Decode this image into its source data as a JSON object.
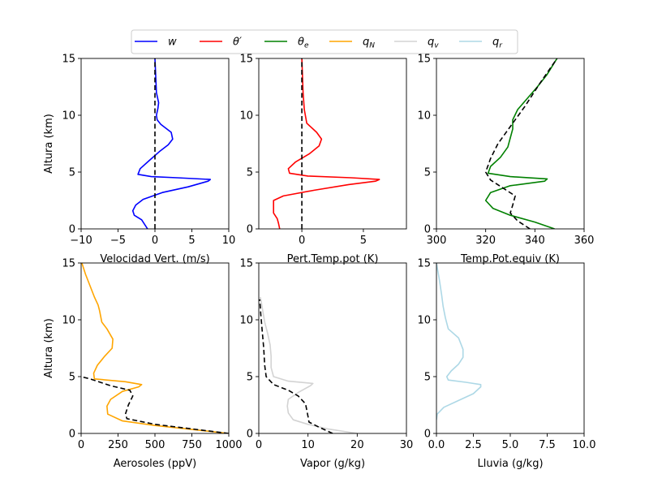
{
  "legend": {
    "placement": "top-center",
    "items": [
      {
        "label": "w",
        "color": "#0000ff"
      },
      {
        "label": "θ′",
        "color": "#ff0000"
      },
      {
        "label": "θe",
        "color": "#008000"
      },
      {
        "label": "qN",
        "color": "#ffa500"
      },
      {
        "label": "qv",
        "color": "#d3d3d3"
      },
      {
        "label": "qr",
        "color": "#add8e6"
      }
    ]
  },
  "chart_data": [
    {
      "type": "line",
      "xlabel": "Velocidad Vert. (m/s)",
      "ylabel": "Altura (km)",
      "xlim": [
        -10,
        10
      ],
      "ylim": [
        0,
        15
      ],
      "xticks": [
        -10,
        -5,
        0,
        5,
        10
      ],
      "xtick_labels": [
        "−10",
        "−5",
        "0",
        "5",
        "10"
      ],
      "yticks": [
        0,
        5,
        10,
        15
      ],
      "ytick_labels": [
        "0",
        "5",
        "10",
        "15"
      ],
      "series": [
        {
          "name": "w",
          "color": "#0000ff",
          "style": "solid",
          "x": [
            -1.0,
            -1.4,
            -1.8,
            -2.8,
            -3.0,
            -2.6,
            -1.6,
            1.0,
            4.5,
            7.2,
            7.5,
            3.0,
            -0.5,
            -2.3,
            -2.0,
            -0.8,
            0.6,
            1.8,
            2.4,
            2.2,
            0.8,
            0.3,
            0.2,
            0.4,
            0.5,
            0.2,
            0.0
          ],
          "y": [
            0.0,
            0.4,
            0.8,
            1.2,
            1.6,
            2.1,
            2.6,
            3.2,
            3.7,
            4.2,
            4.35,
            4.5,
            4.6,
            4.8,
            5.3,
            6.0,
            6.8,
            7.4,
            7.9,
            8.5,
            9.2,
            9.6,
            10.0,
            10.6,
            11.1,
            12.0,
            15.0
          ]
        },
        {
          "name": "",
          "color": "#000000",
          "style": "dashed",
          "x": [
            0,
            0
          ],
          "y": [
            0,
            15
          ]
        }
      ]
    },
    {
      "type": "line",
      "xlabel": "Pert.Temp.pot (K)",
      "ylabel": "",
      "xlim": [
        -3.5,
        8.5
      ],
      "ylim": [
        0,
        15
      ],
      "xticks": [
        0,
        5
      ],
      "xtick_labels": [
        "0",
        "5"
      ],
      "yticks": [
        0,
        5,
        10,
        15
      ],
      "ytick_labels": [
        "0",
        "5",
        "10",
        "15"
      ],
      "series": [
        {
          "name": "θ′",
          "color": "#ff0000",
          "style": "solid",
          "x": [
            -1.8,
            -1.9,
            -2.0,
            -2.3,
            -2.3,
            -1.5,
            1.0,
            3.8,
            6.0,
            6.3,
            4.0,
            0.5,
            -1.0,
            -1.1,
            -0.5,
            0.6,
            1.4,
            1.6,
            1.2,
            0.4,
            0.2,
            0.1,
            0.0
          ],
          "y": [
            0.0,
            0.5,
            0.9,
            1.4,
            2.5,
            2.9,
            3.4,
            3.9,
            4.2,
            4.35,
            4.5,
            4.65,
            4.9,
            5.3,
            5.9,
            6.6,
            7.3,
            7.9,
            8.5,
            9.3,
            10.5,
            12.0,
            15.0
          ]
        },
        {
          "name": "",
          "color": "#000000",
          "style": "dashed",
          "x": [
            0,
            0
          ],
          "y": [
            0,
            15
          ]
        }
      ]
    },
    {
      "type": "line",
      "xlabel": "Temp.Pot.equiv (K)",
      "ylabel": "",
      "xlim": [
        300,
        360
      ],
      "ylim": [
        0,
        15
      ],
      "xticks": [
        300,
        320,
        340,
        360
      ],
      "xtick_labels": [
        "300",
        "320",
        "340",
        "360"
      ],
      "yticks": [
        0,
        5,
        10,
        15
      ],
      "ytick_labels": [
        "0",
        "5",
        "10",
        "15"
      ],
      "series": [
        {
          "name": "θe",
          "color": "#008000",
          "style": "solid",
          "x": [
            348,
            340,
            330,
            323,
            320,
            322,
            330,
            344,
            345,
            330,
            321,
            322,
            326,
            329,
            330,
            331,
            331,
            333,
            337,
            341,
            345,
            349
          ],
          "y": [
            0.0,
            0.6,
            1.2,
            1.8,
            2.5,
            3.2,
            3.8,
            4.2,
            4.4,
            4.6,
            4.9,
            5.5,
            6.3,
            7.2,
            8.0,
            8.8,
            9.6,
            10.5,
            11.5,
            12.5,
            13.6,
            15.0
          ]
        },
        {
          "name": "",
          "color": "#000000",
          "style": "dashed",
          "x": [
            338,
            333,
            330,
            331,
            332,
            327,
            322,
            320,
            322,
            325,
            330,
            336,
            342,
            349
          ],
          "y": [
            0.0,
            0.7,
            1.4,
            2.1,
            2.9,
            3.6,
            4.3,
            5.0,
            6.2,
            7.5,
            9.0,
            10.8,
            12.8,
            15.0
          ]
        }
      ]
    },
    {
      "type": "line",
      "xlabel": "Aerosoles (ppV)",
      "ylabel": "Altura (km)",
      "xlim": [
        0,
        1000
      ],
      "ylim": [
        0,
        15
      ],
      "xticks": [
        0,
        250,
        500,
        750,
        1000
      ],
      "xtick_labels": [
        "0",
        "250",
        "500",
        "750",
        "1000"
      ],
      "yticks": [
        0,
        5,
        10,
        15
      ],
      "ytick_labels": [
        "0",
        "5",
        "10",
        "15"
      ],
      "series": [
        {
          "name": "qN",
          "color": "#ffa500",
          "style": "solid",
          "x": [
            1000,
            500,
            280,
            180,
            175,
            200,
            280,
            390,
            410,
            300,
            90,
            85,
            110,
            160,
            210,
            215,
            175,
            140,
            125,
            115,
            90,
            60,
            30,
            5
          ],
          "y": [
            0.0,
            0.7,
            1.1,
            1.7,
            2.4,
            3.0,
            3.7,
            4.1,
            4.3,
            4.55,
            4.8,
            5.3,
            6.0,
            6.8,
            7.5,
            8.3,
            9.2,
            9.8,
            10.8,
            11.3,
            12.0,
            13.0,
            14.0,
            15.0
          ]
        },
        {
          "name": "",
          "color": "#000000",
          "style": "dashed",
          "x": [
            1000,
            500,
            310,
            300,
            320,
            350,
            330,
            200,
            60,
            0
          ],
          "y": [
            0.0,
            0.8,
            1.3,
            1.7,
            2.5,
            3.3,
            3.8,
            4.2,
            4.8,
            5.0
          ]
        }
      ]
    },
    {
      "type": "line",
      "xlabel": "Vapor (g/kg)",
      "ylabel": "",
      "xlim": [
        0,
        30
      ],
      "ylim": [
        0,
        15
      ],
      "xticks": [
        0,
        10,
        20,
        30
      ],
      "xtick_labels": [
        "0",
        "10",
        "20",
        "30"
      ],
      "yticks": [
        0,
        5,
        10,
        15
      ],
      "ytick_labels": [
        "0",
        "5",
        "10",
        "15"
      ],
      "series": [
        {
          "name": "qv",
          "color": "#d3d3d3",
          "style": "solid",
          "x": [
            20,
            14,
            10,
            7,
            6,
            5.8,
            6,
            8,
            10.5,
            11,
            6,
            3,
            2.5,
            2.5,
            2.3,
            1.8,
            1.2,
            0.8,
            0.5,
            0.3
          ],
          "y": [
            0.0,
            0.4,
            0.8,
            1.2,
            1.8,
            2.4,
            3.0,
            3.6,
            4.2,
            4.4,
            4.6,
            5.0,
            5.8,
            6.8,
            7.8,
            8.8,
            9.8,
            10.8,
            11.6,
            12.0
          ]
        },
        {
          "name": "",
          "color": "#000000",
          "style": "dashed",
          "x": [
            15,
            12,
            10.2,
            10,
            9.5,
            8,
            6,
            3,
            1.5,
            1.2,
            1.0,
            0.7,
            0.4,
            0.2
          ],
          "y": [
            0.0,
            0.6,
            1.0,
            1.5,
            2.6,
            3.3,
            3.8,
            4.3,
            5.0,
            6.0,
            7.5,
            9.0,
            10.5,
            11.8
          ]
        }
      ]
    },
    {
      "type": "line",
      "xlabel": "Lluvia (g/kg)",
      "ylabel": "",
      "xlim": [
        0,
        10
      ],
      "ylim": [
        0,
        15
      ],
      "xticks": [
        0,
        2.5,
        5,
        7.5,
        10
      ],
      "xtick_labels": [
        "0.0",
        "2.5",
        "5.0",
        "7.5",
        "10.0"
      ],
      "yticks": [
        0,
        5,
        10,
        15
      ],
      "ytick_labels": [
        "0",
        "5",
        "10",
        "15"
      ],
      "series": [
        {
          "name": "qr",
          "color": "#add8e6",
          "style": "solid",
          "x": [
            0.0,
            0.05,
            0.5,
            1.5,
            2.5,
            3.0,
            3.0,
            2.0,
            0.8,
            0.7,
            1.0,
            1.5,
            1.8,
            1.8,
            1.5,
            0.8,
            0.6,
            0.45,
            0.35,
            0.2,
            0.0
          ],
          "y": [
            1.2,
            1.7,
            2.3,
            2.9,
            3.5,
            4.1,
            4.3,
            4.5,
            4.7,
            5.0,
            5.5,
            6.1,
            6.7,
            7.4,
            8.4,
            9.2,
            10.2,
            11.2,
            12.2,
            13.5,
            15.0
          ]
        }
      ]
    }
  ]
}
